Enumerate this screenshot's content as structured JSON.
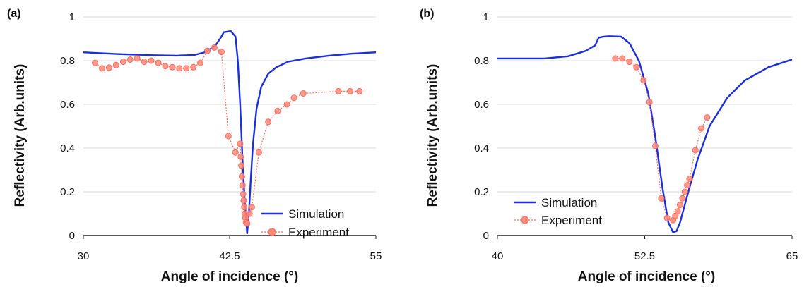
{
  "colors": {
    "simulation": "#1a2fe0",
    "experiment_fill": "#ff8a7a",
    "experiment_edge": "#ff6a5a",
    "grid": "#d9d9d9",
    "axis": "#222222"
  },
  "chart_data": [
    {
      "type": "line",
      "panel_label": "(a)",
      "xlabel": "Angle of incidence (°)",
      "ylabel": "Reflectivity  (Arb.units)",
      "xlim": [
        30,
        55
      ],
      "ylim": [
        0,
        1
      ],
      "x_ticks": [
        "30",
        "42.5",
        "55"
      ],
      "y_ticks": [
        "0",
        "0.2",
        "0.4",
        "0.6",
        "0.8",
        "1"
      ],
      "grid": "horizontal",
      "legend_position": "lower-right",
      "series": [
        {
          "name": "Simulation",
          "style": "solid",
          "x": [
            30,
            33,
            36,
            38,
            39.5,
            40.5,
            41.3,
            41.8,
            42.0,
            42.6,
            43.0,
            43.2,
            43.4,
            43.6,
            43.8,
            44.0,
            44.15,
            44.3,
            44.5,
            44.8,
            45.2,
            45.8,
            46.5,
            47.5,
            49,
            51,
            53,
            55
          ],
          "y": [
            0.838,
            0.83,
            0.825,
            0.823,
            0.826,
            0.84,
            0.87,
            0.91,
            0.93,
            0.935,
            0.91,
            0.8,
            0.6,
            0.35,
            0.15,
            0.01,
            0.1,
            0.25,
            0.42,
            0.58,
            0.68,
            0.74,
            0.77,
            0.795,
            0.81,
            0.823,
            0.832,
            0.838
          ]
        },
        {
          "name": "Experiment",
          "style": "dotted-markers",
          "x": [
            31.0,
            31.6,
            32.2,
            32.8,
            33.4,
            34.0,
            34.6,
            35.2,
            35.8,
            36.4,
            37.0,
            37.6,
            38.2,
            38.8,
            39.4,
            40.0,
            40.6,
            41.2,
            41.8,
            42.4,
            43.0,
            43.4,
            43.45,
            43.5,
            43.55,
            43.6,
            43.65,
            43.7,
            43.75,
            43.8,
            43.85,
            43.9,
            44.0,
            44.2,
            44.4,
            45.0,
            45.8,
            46.6,
            47.4,
            48.0,
            48.8,
            51.8,
            52.8,
            53.6
          ],
          "y": [
            0.79,
            0.765,
            0.768,
            0.78,
            0.795,
            0.805,
            0.81,
            0.795,
            0.8,
            0.79,
            0.775,
            0.77,
            0.765,
            0.765,
            0.77,
            0.79,
            0.845,
            0.86,
            0.84,
            0.455,
            0.38,
            0.42,
            0.36,
            0.32,
            0.27,
            0.23,
            0.19,
            0.16,
            0.13,
            0.1,
            0.08,
            0.06,
            0.055,
            0.1,
            0.13,
            0.38,
            0.52,
            0.57,
            0.6,
            0.63,
            0.65,
            0.66,
            0.66,
            0.66
          ]
        }
      ]
    },
    {
      "type": "line",
      "panel_label": "(b)",
      "xlabel": "Angle of incidence (°)",
      "ylabel": "Reflectivity  (Arb.units)",
      "xlim": [
        40,
        65
      ],
      "ylim": [
        0,
        1
      ],
      "x_ticks": [
        "40",
        "52.5",
        "65"
      ],
      "y_ticks": [
        "0",
        "0.2",
        "0.4",
        "0.6",
        "0.8",
        "1"
      ],
      "grid": "horizontal",
      "legend_position": "lower-left",
      "series": [
        {
          "name": "Simulation",
          "style": "solid",
          "x": [
            40,
            44,
            46,
            47.5,
            48.3,
            48.6,
            49,
            49.5,
            50.5,
            51.2,
            52.0,
            52.8,
            53.4,
            54.0,
            54.5,
            54.9,
            55.2,
            55.5,
            55.8,
            56.3,
            57.0,
            58.0,
            59.5,
            61,
            63,
            65
          ],
          "y": [
            0.81,
            0.81,
            0.82,
            0.845,
            0.87,
            0.905,
            0.91,
            0.912,
            0.91,
            0.88,
            0.8,
            0.65,
            0.45,
            0.22,
            0.06,
            0.015,
            0.02,
            0.06,
            0.12,
            0.22,
            0.35,
            0.5,
            0.63,
            0.71,
            0.77,
            0.805
          ]
        },
        {
          "name": "Experiment",
          "style": "dotted-markers",
          "x": [
            50.0,
            50.6,
            51.2,
            51.8,
            52.4,
            52.9,
            53.4,
            53.9,
            54.4,
            54.9,
            55.1,
            55.3,
            55.5,
            55.7,
            55.9,
            56.1,
            56.3,
            56.8,
            57.3,
            57.8
          ],
          "y": [
            0.81,
            0.81,
            0.795,
            0.77,
            0.71,
            0.61,
            0.41,
            0.17,
            0.08,
            0.07,
            0.09,
            0.11,
            0.14,
            0.17,
            0.2,
            0.23,
            0.26,
            0.39,
            0.49,
            0.54
          ]
        }
      ]
    }
  ],
  "legend": {
    "simulation_label": "Simulation",
    "experiment_label": "Experiment"
  }
}
